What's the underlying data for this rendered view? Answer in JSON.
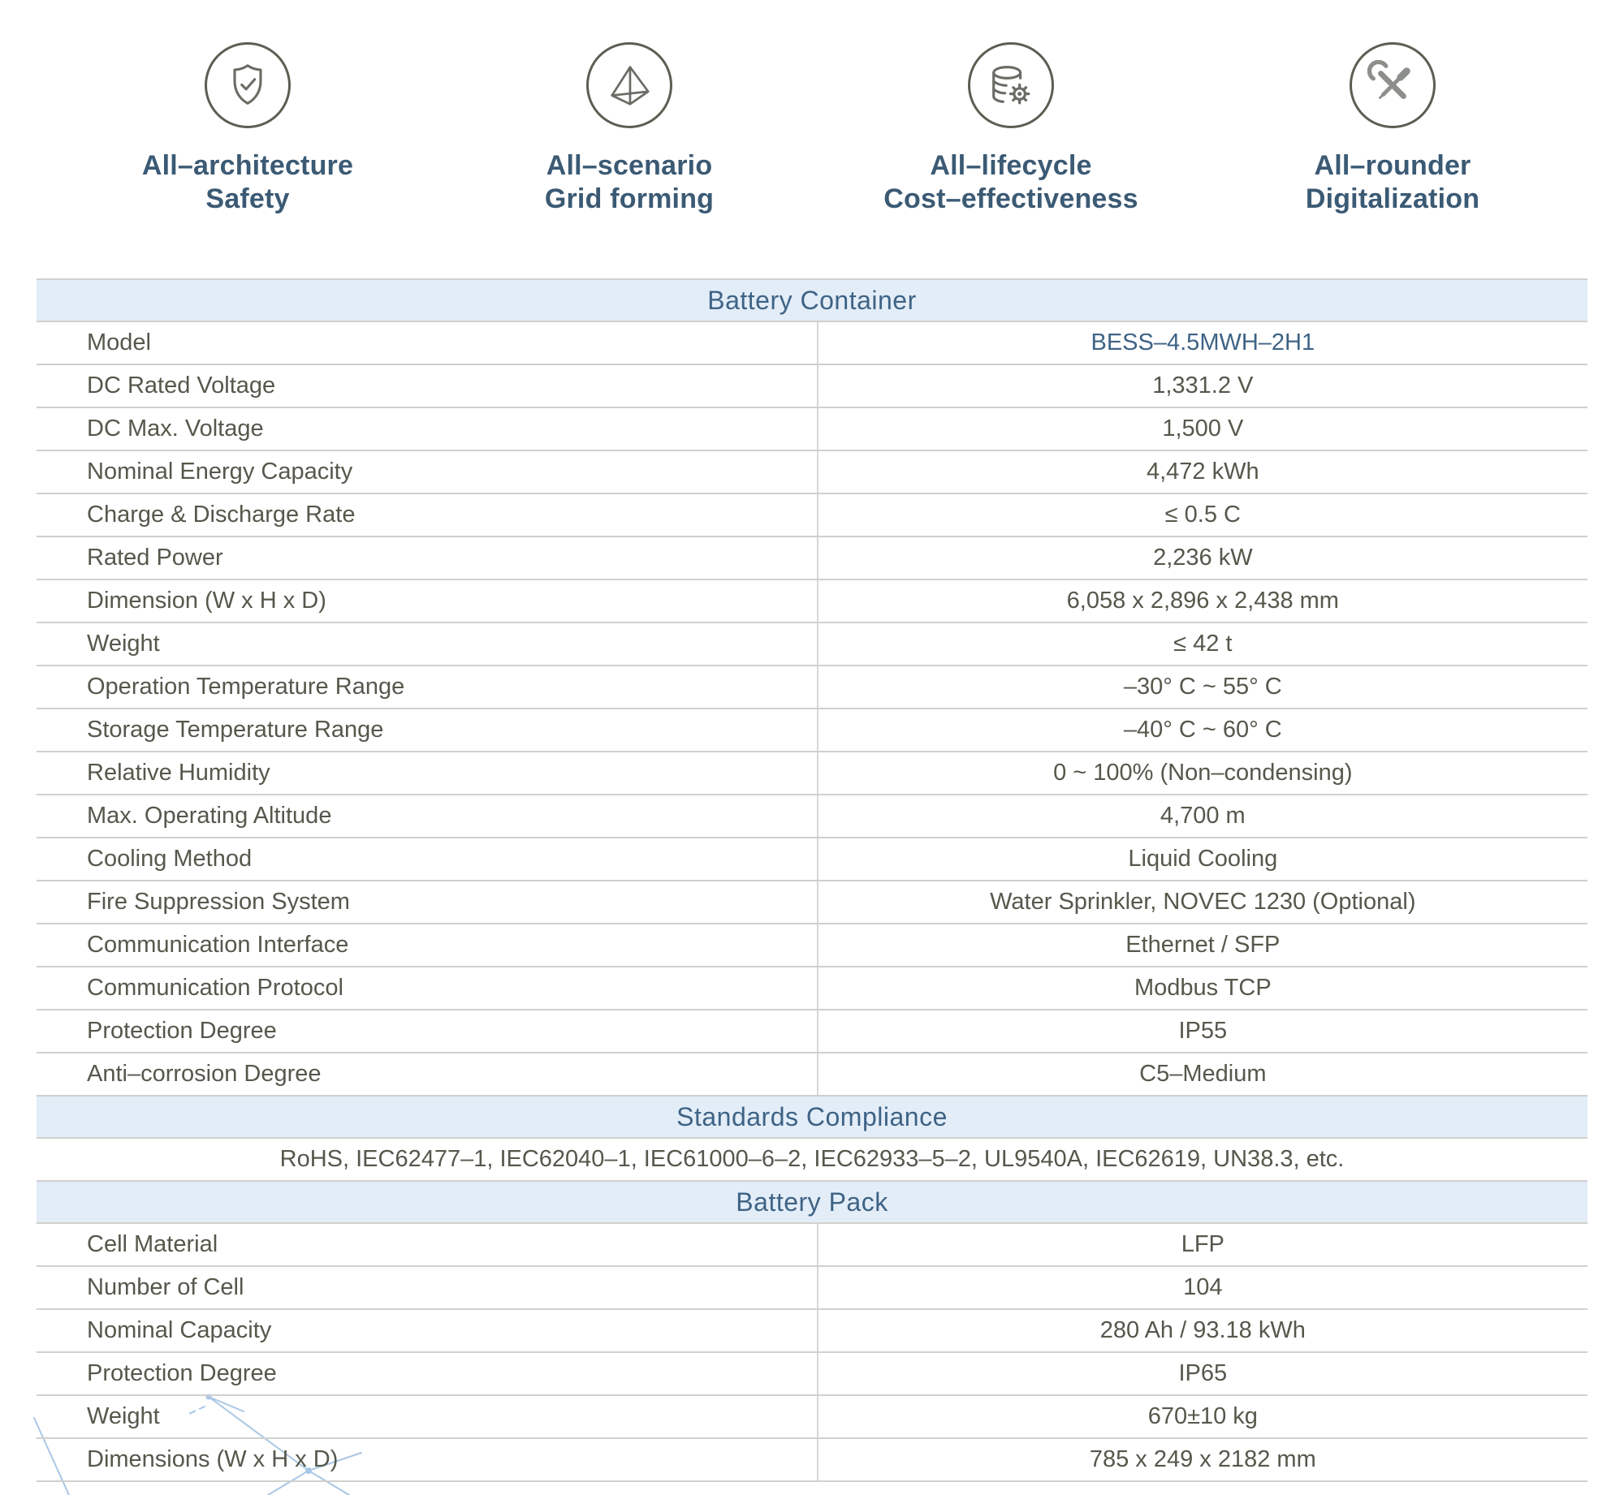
{
  "features": [
    {
      "icon": "shield-check-icon",
      "line1": "All–architecture",
      "line2": "Safety"
    },
    {
      "icon": "tetrahedron-icon",
      "line1": "All–scenario",
      "line2": "Grid forming"
    },
    {
      "icon": "database-gear-icon",
      "line1": "All–lifecycle",
      "line2": "Cost–effectiveness"
    },
    {
      "icon": "tools-icon",
      "line1": "All–rounder",
      "line2": "Digitalization"
    }
  ],
  "sections": [
    {
      "title": "Battery Container",
      "rows": [
        {
          "label": "Model",
          "value": "BESS–4.5MWH–2H1",
          "accent": true
        },
        {
          "label": "DC Rated Voltage",
          "value": "1,331.2 V"
        },
        {
          "label": "DC Max. Voltage",
          "value": "1,500 V"
        },
        {
          "label": "Nominal Energy Capacity",
          "value": "4,472 kWh"
        },
        {
          "label": "Charge & Discharge Rate",
          "value": "≤ 0.5 C"
        },
        {
          "label": "Rated Power",
          "value": "2,236 kW"
        },
        {
          "label": "Dimension (W x H x D)",
          "value": "6,058 x 2,896 x 2,438 mm"
        },
        {
          "label": "Weight",
          "value": "≤ 42 t"
        },
        {
          "label": "Operation Temperature Range",
          "value": "–30° C ~ 55° C"
        },
        {
          "label": "Storage Temperature Range",
          "value": "–40° C ~ 60° C"
        },
        {
          "label": "Relative Humidity",
          "value": "0 ~ 100% (Non–condensing)"
        },
        {
          "label": "Max. Operating Altitude",
          "value": "4,700 m"
        },
        {
          "label": "Cooling Method",
          "value": "Liquid Cooling"
        },
        {
          "label": "Fire Suppression System",
          "value": "Water Sprinkler, NOVEC 1230 (Optional)"
        },
        {
          "label": "Communication Interface",
          "value": "Ethernet / SFP"
        },
        {
          "label": "Communication Protocol",
          "value": "Modbus TCP"
        },
        {
          "label": "Protection Degree",
          "value": "IP55"
        },
        {
          "label": "Anti–corrosion Degree",
          "value": "C5–Medium"
        }
      ]
    },
    {
      "title": "Standards Compliance",
      "note": "RoHS, IEC62477–1, IEC62040–1, IEC61000–6–2, IEC62933–5–2, UL9540A,  IEC62619, UN38.3, etc."
    },
    {
      "title": "Battery Pack",
      "rows": [
        {
          "label": "Cell Material",
          "value": "LFP"
        },
        {
          "label": "Number of Cell",
          "value": "104"
        },
        {
          "label": "Nominal Capacity",
          "value": "280 Ah / 93.18 kWh"
        },
        {
          "label": "Protection Degree",
          "value": "IP65"
        },
        {
          "label": "Weight",
          "value": "670±10 kg"
        },
        {
          "label": "Dimensions (W x H x D)",
          "value": "785 x 249 x 2182 mm"
        }
      ]
    }
  ],
  "colors": {
    "accent_blue": "#3e6385",
    "feature_text_blue": "#3b5a74",
    "band_background": "#e3edf8",
    "row_text_gray": "#55584b",
    "border_gray": "#d0d0ce",
    "icon_gray": "#6a6c64",
    "icon_circle_gray": "#5c5e52",
    "sketch_blue": "#a9c7e6"
  }
}
